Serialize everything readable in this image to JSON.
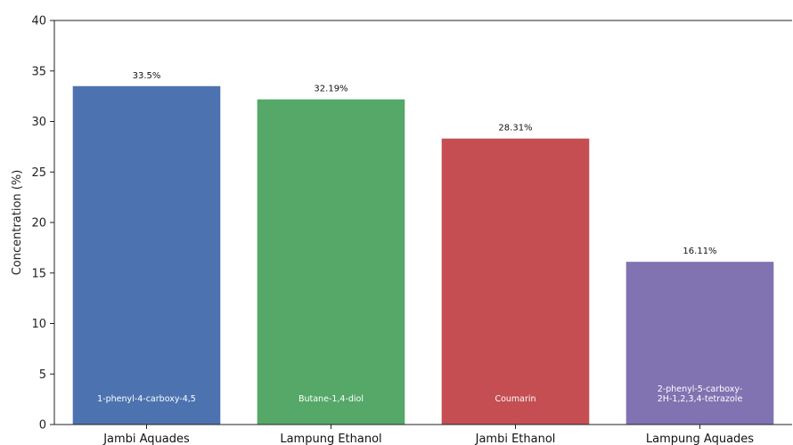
{
  "chart_data": {
    "type": "bar",
    "categories": [
      "Jambi Aquades",
      "Lampung Ethanol",
      "Jambi Ethanol",
      "Lampung Aquades"
    ],
    "values": [
      33.5,
      32.19,
      28.31,
      16.11
    ],
    "value_labels": [
      "33.5%",
      "32.19%",
      "28.31%",
      "16.11%"
    ],
    "compound_labels": [
      [
        "1-phenyl-4-carboxy-4,5"
      ],
      [
        "Butane-1,4-diol"
      ],
      [
        "Coumarin"
      ],
      [
        "2-phenyl-5-carboxy-",
        "2H-1,2,3,4-tetrazole"
      ]
    ],
    "bar_colors": [
      "#4c72b0",
      "#55a868",
      "#c44e52",
      "#8172b2"
    ],
    "ylabel": "Concentration (%)",
    "xlabel": "",
    "ylim": [
      0,
      40
    ],
    "yticks": [
      0,
      5,
      10,
      15,
      20,
      25,
      30,
      35,
      40
    ],
    "grid": false,
    "legend": "none"
  }
}
